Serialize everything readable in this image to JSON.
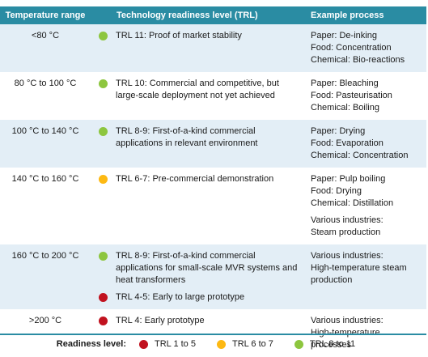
{
  "header": {
    "temperature_range": "Temperature range",
    "trl": "Technology readiness level (TRL)",
    "example": "Example process"
  },
  "rows": [
    {
      "range": "<80 °C",
      "trl": [
        {
          "text": "TRL 11: Proof of market stability",
          "color": "#8dc63f"
        }
      ],
      "example": [
        [
          "Paper: De-inking",
          "Food: Concentration",
          "Chemical: Bio-reactions"
        ]
      ]
    },
    {
      "range": "80 °C to 100 °C",
      "trl": [
        {
          "text": "TRL 10: Commercial and competitive, but large-scale deployment not yet achieved",
          "color": "#8dc63f"
        }
      ],
      "example": [
        [
          "Paper: Bleaching",
          "Food: Pasteurisation",
          "Chemical: Boiling"
        ]
      ]
    },
    {
      "range": "100 °C to 140 °C",
      "trl": [
        {
          "text": "TRL 8-9: First-of-a-kind commercial applications in relevant environment",
          "color": "#8dc63f"
        }
      ],
      "example": [
        [
          "Paper: Drying",
          "Food: Evaporation",
          "Chemical: Concentration"
        ]
      ]
    },
    {
      "range": "140 °C to 160 °C",
      "trl": [
        {
          "text": "TRL 6-7: Pre-commercial demonstration",
          "color": "#fdb913"
        }
      ],
      "example": [
        [
          "Paper: Pulp boiling",
          "Food: Drying",
          "Chemical: Distillation"
        ],
        [
          "Various industries:",
          "Steam production"
        ]
      ]
    },
    {
      "range": "160 °C to 200 °C",
      "trl": [
        {
          "text": "TRL 8-9: First-of-a-kind commercial applications for small-scale MVR systems and heat transformers",
          "color": "#8dc63f"
        },
        {
          "text": "TRL 4-5: Early to large prototype",
          "color": "#c1121f"
        }
      ],
      "example": [
        [
          "Various industries:",
          "High-temperature steam production"
        ]
      ]
    },
    {
      "range": ">200 °C",
      "trl": [
        {
          "text": "TRL 4: Early prototype",
          "color": "#c1121f"
        }
      ],
      "example": [
        [
          "Various industries:",
          "High-temperature processes"
        ]
      ]
    }
  ],
  "legend": {
    "title": "Readiness level:",
    "items": [
      {
        "label": "TRL 1 to 5",
        "color": "#c1121f"
      },
      {
        "label": "TRL 6 to 7",
        "color": "#fdb913"
      },
      {
        "label": "TRL 8 to 11",
        "color": "#8dc63f"
      }
    ]
  }
}
